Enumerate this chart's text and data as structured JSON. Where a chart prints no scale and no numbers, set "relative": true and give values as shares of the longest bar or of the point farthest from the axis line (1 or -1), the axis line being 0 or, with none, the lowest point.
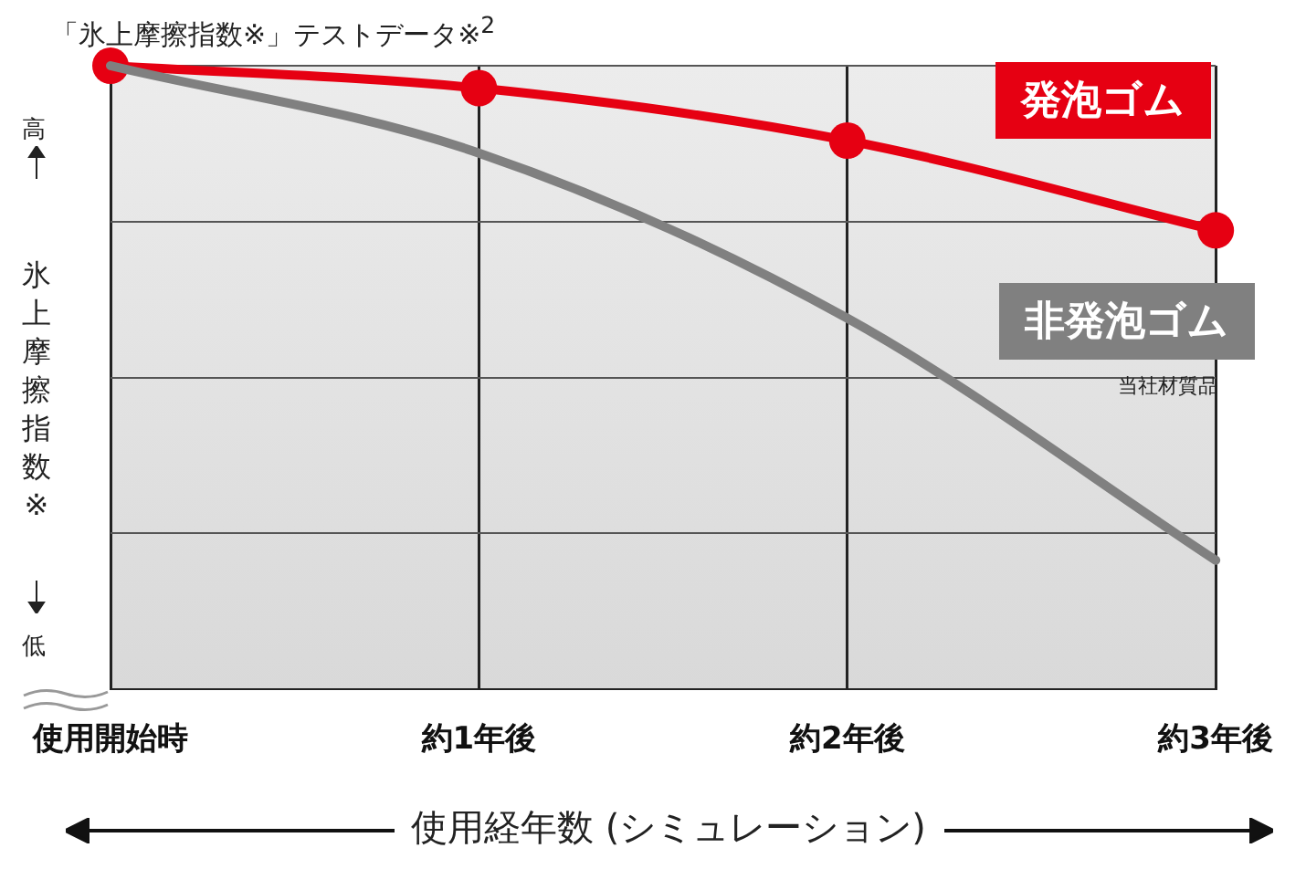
{
  "chart_data": {
    "type": "line",
    "title": "「氷上摩擦指数※」テストデータ※$^{2}$",
    "ylabel": "氷上摩擦指数※",
    "xlabel": "使用経年数 (シミュレーション)",
    "relative": true,
    "grid": true,
    "legend": false,
    "categories": [
      "使用開始時",
      "約1年後",
      "約2年後",
      "約3年後"
    ],
    "series": [
      {
        "name": "発泡ゴム",
        "color": "#e60012",
        "marker": "circle",
        "values": [
          1,
          0.964,
          0.88,
          0.736
        ]
      },
      {
        "name": "非発泡ゴム",
        "color": "#808080",
        "marker": "none",
        "values": [
          1,
          0.86,
          0.595,
          0.207
        ]
      }
    ],
    "annotations": [
      "高",
      "低",
      "当社材質品"
    ]
  }
}
